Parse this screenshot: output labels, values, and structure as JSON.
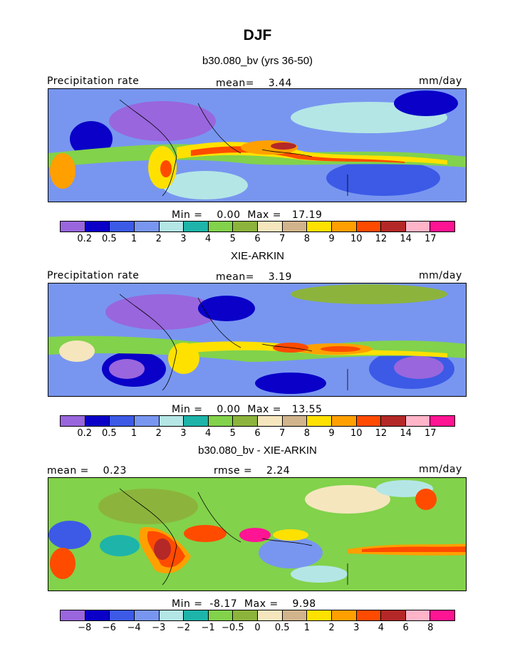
{
  "title": "DJF",
  "panels": [
    {
      "subtitle": "b30.080_bv (yrs 36-50)",
      "header_left": "Precipitation rate",
      "header_mid": "mean=    3.44",
      "header_right": "mm/day",
      "stats": "Min =    0.00  Max =   17.19",
      "levels": [
        "0.2",
        "0.5",
        "1",
        "2",
        "3",
        "4",
        "5",
        "6",
        "7",
        "8",
        "9",
        "10",
        "12",
        "14",
        "17"
      ]
    },
    {
      "subtitle": "XIE-ARKIN",
      "header_left": "Precipitation rate",
      "header_mid": "mean=    3.19",
      "header_right": "mm/day",
      "stats": "Min =    0.00  Max =   13.55",
      "levels": [
        "0.2",
        "0.5",
        "1",
        "2",
        "3",
        "4",
        "5",
        "6",
        "7",
        "8",
        "9",
        "10",
        "12",
        "14",
        "17"
      ]
    },
    {
      "subtitle": "b30.080_bv - XIE-ARKIN",
      "header_left": "mean =    0.23",
      "header_mid": "rmse =    2.24",
      "header_right": "mm/day",
      "stats": "Min =  -8.17  Max =    9.98",
      "levels": [
        "-8",
        "-6",
        "-4",
        "-3",
        "-2",
        "-1",
        "-0.5",
        "0",
        "0.5",
        "1",
        "2",
        "3",
        "4",
        "6",
        "8"
      ]
    }
  ],
  "colorbar": [
    "#9966dd",
    "#0a00c8",
    "#3c5ae6",
    "#7896f0",
    "#b4e6e6",
    "#1eb4aa",
    "#82d24b",
    "#8cb43c",
    "#f5e6be",
    "#d2b48c",
    "#ffe100",
    "#ffa000",
    "#ff4b00",
    "#b42828",
    "#ffb4c8",
    "#ff1493"
  ]
}
